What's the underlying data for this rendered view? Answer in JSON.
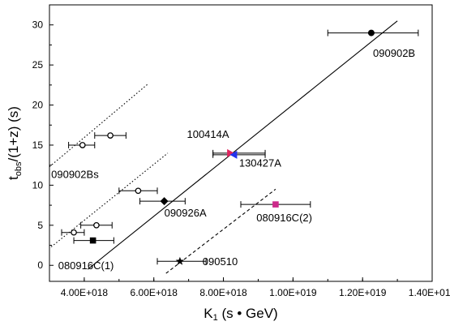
{
  "chart_data": {
    "type": "scatter",
    "xlabel_main": "K",
    "xlabel_sub": "1",
    "xlabel_rest": " (s • GeV)",
    "ylabel_main": "t",
    "ylabel_sub": "obs",
    "ylabel_rest": "/(1+z) (s)",
    "xlim": [
      3e+18,
      1.4e+19
    ],
    "ylim": [
      -2,
      32.5
    ],
    "x_tick_values": [
      4e+18,
      6e+18,
      8e+18,
      1e+19,
      1.2e+19,
      1.4e+19
    ],
    "x_tick_labels": [
      "4.00E+018",
      "6.00E+018",
      "8.00E+018",
      "1.00E+019",
      "1.20E+019",
      "1.40E+019"
    ],
    "y_tick_values": [
      0,
      5,
      10,
      15,
      20,
      25,
      30
    ],
    "y_tick_labels": [
      "0",
      "5",
      "10",
      "15",
      "20",
      "25",
      "30"
    ],
    "points": [
      {
        "label": "090902B",
        "x": 1.225e+19,
        "y": 29.0,
        "xerr": [
          1.1e+19,
          1.36e+19
        ],
        "marker": "filled-circle",
        "color": "#000000"
      },
      {
        "label": "100414A",
        "x": 8.2e+18,
        "y": 14.0,
        "xerr": [
          7.7e+18,
          9.2e+18
        ],
        "marker": "right-triangle",
        "color": "#e0245e"
      },
      {
        "label": "130427A",
        "x": 8.3e+18,
        "y": 13.8,
        "xerr": [
          7.7e+18,
          9.2e+18
        ],
        "marker": "left-triangle",
        "color": "#2233ee"
      },
      {
        "label": "090926A",
        "x": 6.3e+18,
        "y": 8.0,
        "xerr": [
          5.6e+18,
          6.9e+18
        ],
        "marker": "filled-diamond",
        "color": "#000000"
      },
      {
        "label": "080916C(2)",
        "x": 9.5e+18,
        "y": 7.6,
        "xerr": [
          8.5e+18,
          1.05e+19
        ],
        "marker": "filled-square",
        "color": "#cc2a8a"
      },
      {
        "label": "090510",
        "x": 6.75e+18,
        "y": 0.5,
        "xerr": [
          6.1e+18,
          7.5e+18
        ],
        "marker": "star",
        "color": "#000000"
      },
      {
        "label": "080916C(1)",
        "x": 4.25e+18,
        "y": 3.1,
        "xerr": [
          3.7e+18,
          4.85e+18
        ],
        "marker": "filled-square",
        "color": "#000000"
      },
      {
        "label": "090902Bs",
        "x": 4.75e+18,
        "y": 16.2,
        "xerr": [
          4.3e+18,
          5.2e+18
        ],
        "marker": "open-circle",
        "color": "#000000"
      },
      {
        "label": "",
        "x": 3.95e+18,
        "y": 15.0,
        "xerr": [
          3.55e+18,
          4.3e+18
        ],
        "marker": "open-circle",
        "color": "#000000"
      },
      {
        "label": "",
        "x": 5.55e+18,
        "y": 9.3,
        "xerr": [
          5e+18,
          6.1e+18
        ],
        "marker": "open-circle",
        "color": "#000000"
      },
      {
        "label": "",
        "x": 4.35e+18,
        "y": 5.0,
        "xerr": [
          3.9e+18,
          4.8e+18
        ],
        "marker": "open-circle",
        "color": "#000000"
      },
      {
        "label": "",
        "x": 3.7e+18,
        "y": 4.1,
        "xerr": [
          3.35e+18,
          4e+18
        ],
        "marker": "open-circle",
        "color": "#000000"
      }
    ],
    "lines": [
      {
        "style": "solid",
        "x": [
          4.1e+18,
          1.3e+19
        ],
        "y": [
          -0.5,
          30.5
        ]
      },
      {
        "style": "dotted",
        "x": [
          3e+18,
          5.85e+18
        ],
        "y": [
          12.3,
          22.7
        ]
      },
      {
        "style": "dotted",
        "x": [
          3.05e+18,
          6.4e+18
        ],
        "y": [
          2.3,
          14.0
        ]
      },
      {
        "style": "dashed",
        "x": [
          6.35e+18,
          9.5e+18
        ],
        "y": [
          -1.0,
          9.5
        ]
      }
    ],
    "annotations": [
      {
        "text": "090902B",
        "x": 1.23e+19,
        "y": 26.0,
        "anchor": "start"
      },
      {
        "text": "100414A",
        "x": 6.95e+18,
        "y": 15.9,
        "anchor": "start"
      },
      {
        "text": "130427A",
        "x": 8.45e+18,
        "y": 12.3,
        "anchor": "start"
      },
      {
        "text": "090902Bs",
        "x": 3.05e+18,
        "y": 10.9,
        "anchor": "start"
      },
      {
        "text": "090926A",
        "x": 6.3e+18,
        "y": 6.1,
        "anchor": "start"
      },
      {
        "text": "080916C(2)",
        "x": 8.95e+18,
        "y": 5.5,
        "anchor": "start"
      },
      {
        "text": "090510",
        "x": 7.4e+18,
        "y": 0.0,
        "anchor": "start"
      },
      {
        "text": "080916C(1)",
        "x": 3.25e+18,
        "y": -0.5,
        "anchor": "start"
      }
    ],
    "grid": false,
    "legend": "none"
  }
}
